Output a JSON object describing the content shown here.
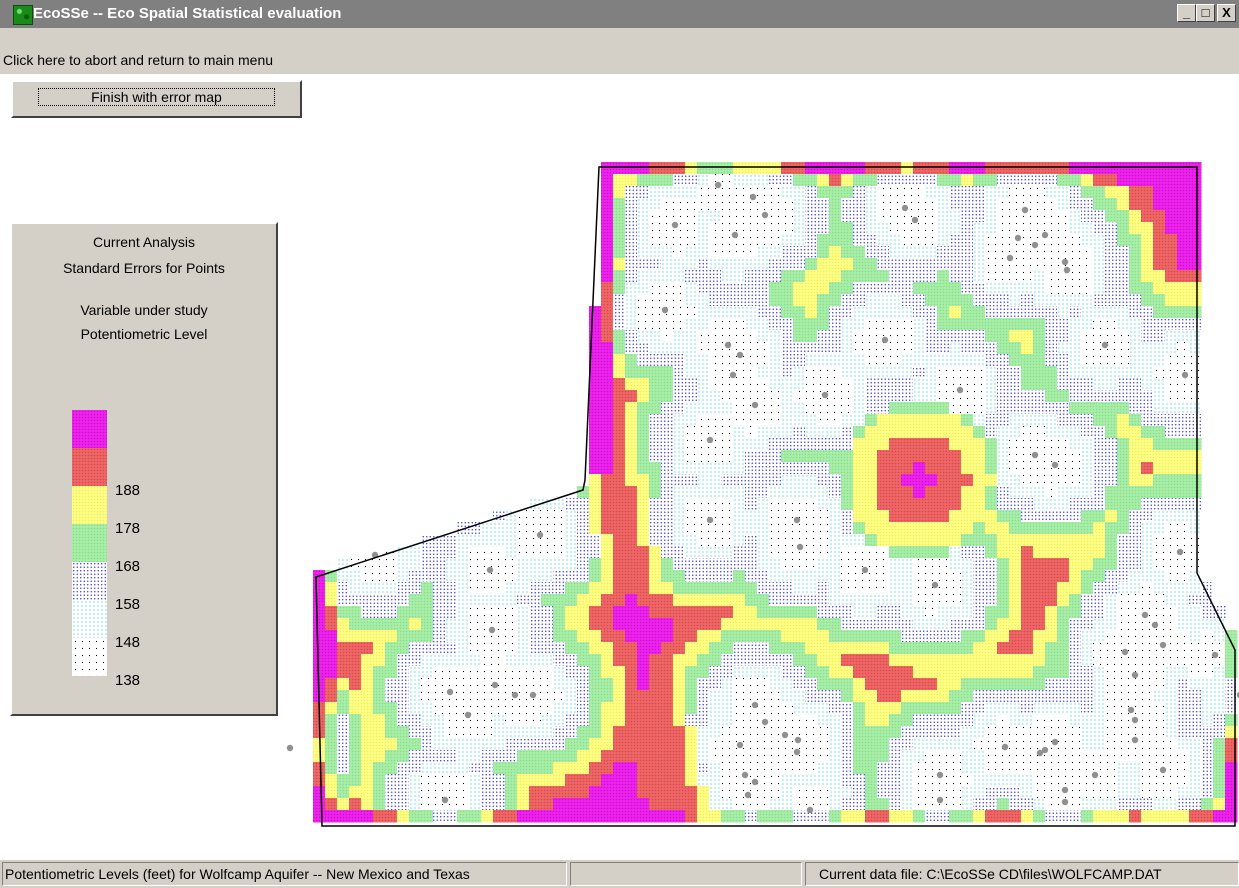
{
  "window": {
    "title": "EcoSSe -- Eco Spatial Statistical evaluation",
    "minimize_label": "_",
    "maximize_label": "□",
    "close_label": "X"
  },
  "menu": {
    "abort_label": "Click here to abort and return to main menu"
  },
  "toolbar": {
    "finish_label": "Finish with error map"
  },
  "legend": {
    "heading1": "Current Analysis",
    "heading2": "Standard Errors for Points",
    "variable_heading": "Variable under study",
    "variable_name": "Potentiometric Level",
    "classes": [
      {
        "label": "",
        "color": "#ee22ee",
        "pattern": "solid"
      },
      {
        "label": "188",
        "color": "#ee6666",
        "pattern": "solid"
      },
      {
        "label": "178",
        "color": "#ffff88",
        "pattern": "solid"
      },
      {
        "label": "168",
        "color": "#a8eea8",
        "pattern": "solid"
      },
      {
        "label": "158",
        "color": "#3333dd",
        "pattern": "dots-dense"
      },
      {
        "label": "148",
        "color": "#22cccc",
        "pattern": "dots-medium"
      },
      {
        "label": "138",
        "color": "#000000",
        "pattern": "dots-sparse"
      }
    ]
  },
  "map": {
    "name": "error-map",
    "sample_point_color": "#909090",
    "boundary_color": "#000000"
  },
  "statusbar": {
    "description": "Potentiometric Levels (feet) for Wolfcamp Aquifer -- New Mexico and Texas",
    "middle": "",
    "data_file": "Current data file: C:\\EcoSSe CD\\files\\WOLFCAMP.DAT"
  }
}
